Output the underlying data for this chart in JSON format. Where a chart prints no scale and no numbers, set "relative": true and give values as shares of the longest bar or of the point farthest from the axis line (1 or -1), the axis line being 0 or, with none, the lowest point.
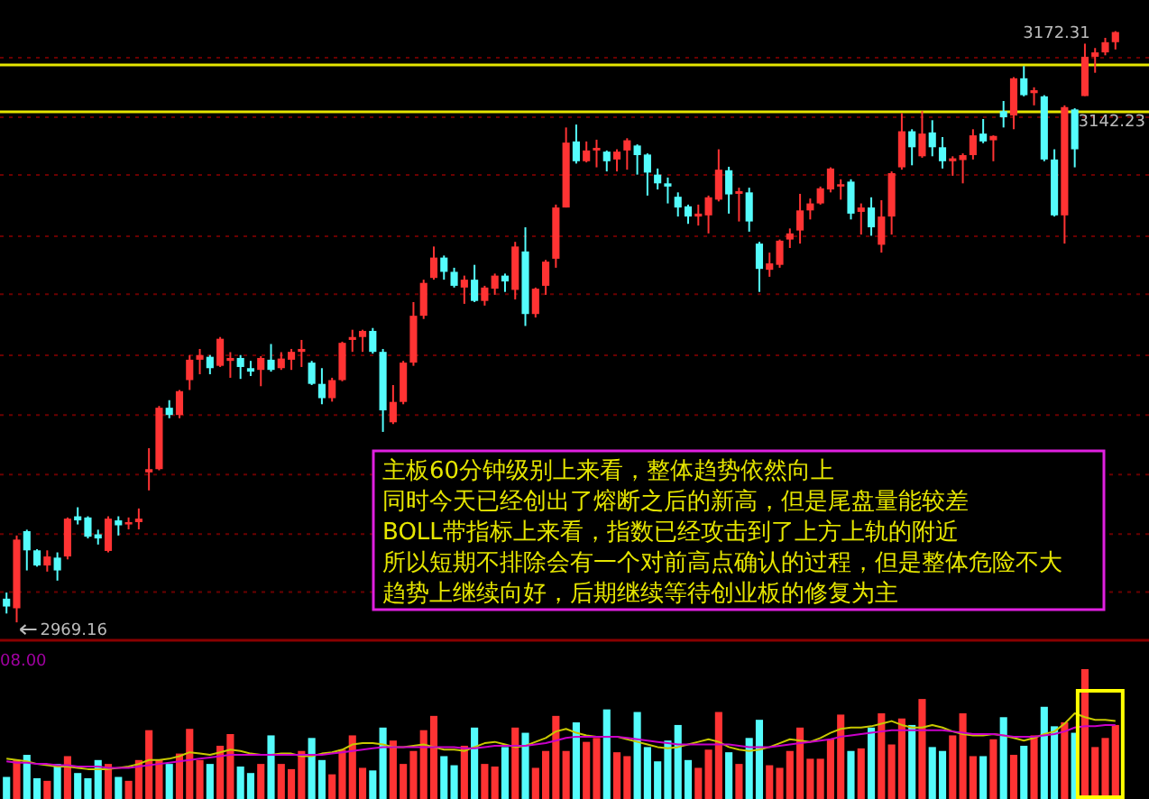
{
  "chart_data": [
    {
      "type": "candlestick",
      "grid": "y",
      "colors": [
        "#54fcfc",
        "#ff3333",
        "#54fcfc",
        "#54fcfc",
        "#ff3333",
        "#54fcfc",
        "#ff3333",
        "#54fcfc",
        "#54fcfc",
        "#54fcfc",
        "#ff3333",
        "#54fcfc",
        "#ff3333",
        "#ff3333",
        "#ff3333",
        "#ff3333",
        "#54fcfc",
        "#ff3333",
        "#ff3333",
        "#ff3333",
        "#54fcfc",
        "#ff3333",
        "#ff3333",
        "#54fcfc",
        "#54fcfc",
        "#ff3333",
        "#54fcfc",
        "#ff3333",
        "#ff3333",
        "#ff3333",
        "#54fcfc",
        "#54fcfc",
        "#ff3333",
        "#ff3333",
        "#ff3333",
        "#ff3333",
        "#54fcfc",
        "#54fcfc",
        "#ff3333",
        "#ff3333",
        "#ff3333",
        "#ff3333",
        "#ff3333",
        "#54fcfc",
        "#54fcfc",
        "#ff3333",
        "#54fcfc",
        "#ff3333",
        "#ff3333",
        "#54fcfc",
        "#ff3333",
        "#54fcfc",
        "#ff3333",
        "#ff3333",
        "#ff3333",
        "#ff3333",
        "#54fcfc",
        "#ff3333",
        "#ff3333",
        "#54fcfc",
        "#ff3333",
        "#ff3333",
        "#54fcfc",
        "#54fcfc",
        "#54fcfc",
        "#54fcfc",
        "#54fcfc",
        "#54fcfc",
        "#ff3333",
        "#ff3333",
        "#ff3333",
        "#54fcfc",
        "#ff3333",
        "#54fcfc",
        "#54fcfc",
        "#ff3333",
        "#ff3333",
        "#ff3333",
        "#ff3333",
        "#ff3333",
        "#ff3333",
        "#ff3333",
        "#ff3333",
        "#54fcfc",
        "#ff3333",
        "#54fcfc",
        "#ff3333",
        "#ff3333",
        "#ff3333",
        "#54fcfc",
        "#ff3333",
        "#54fcfc",
        "#54fcfc",
        "#ff3333",
        "#ff3333",
        "#ff3333",
        "#54fcfc",
        "#ff3333",
        "#54fcfc",
        "#ff3333",
        "#54fcfc",
        "#ff3333",
        "#54fcfc",
        "#54fcfc",
        "#ff3333",
        "#54fcfc",
        "#ff3333",
        "#ff3333",
        "#ff3333",
        "#ff3333"
      ],
      "categories": [
        null,
        null,
        null,
        null,
        null,
        null,
        null,
        null,
        null,
        null,
        null,
        null,
        null,
        null,
        null,
        null,
        null,
        null,
        null,
        null,
        null,
        null,
        null,
        null,
        null,
        null,
        null,
        null,
        null,
        null,
        null,
        null,
        null,
        null,
        null,
        null,
        null,
        null,
        null,
        null,
        null,
        null,
        null,
        null,
        null,
        null,
        null,
        null,
        null,
        null,
        null,
        null,
        null,
        null,
        null,
        null,
        null,
        null,
        null,
        null,
        null,
        null,
        null,
        null,
        null,
        null,
        null,
        null,
        null,
        null,
        null,
        null,
        null,
        null,
        null,
        null,
        null,
        null,
        null,
        null,
        null,
        null,
        null,
        null,
        null,
        null,
        null,
        null,
        null,
        null,
        null,
        null,
        null,
        null,
        null,
        null,
        null,
        null,
        null,
        null,
        null,
        null,
        null,
        null,
        null,
        null,
        null,
        null,
        null,
        null
      ],
      "ohlc": [
        [
          2977.3,
          2979.4,
          2972.2,
          2974.6
        ],
        [
          2974,
          2999,
          2969.16,
          2997.6
        ],
        [
          3000.5,
          3001,
          2987,
          2993.9
        ],
        [
          2993.9,
          2994.3,
          2988.3,
          2988.7
        ],
        [
          2988.7,
          2993.9,
          2986.6,
          2991.8
        ],
        [
          2991.4,
          2993.2,
          2983.5,
          2987
        ],
        [
          2991.8,
          3005.2,
          2990.8,
          3004.8
        ],
        [
          3005.6,
          3008.7,
          3002.8,
          3004.2
        ],
        [
          3005.2,
          3005.6,
          2998,
          2998.6
        ],
        [
          2999.4,
          3001,
          2995.9,
          2998
        ],
        [
          2993.7,
          3005.6,
          2993.2,
          3004.8
        ],
        [
          3004.2,
          3005.6,
          2999,
          3002.5
        ],
        [
          3002.8,
          3005.2,
          3001.1,
          3003.6
        ],
        [
          3003.6,
          3008.3,
          3001.1,
          3004.8
        ],
        [
          3020.7,
          3029,
          3014.5,
          3021.8
        ],
        [
          3021.8,
          3043.5,
          3021.4,
          3042.9
        ],
        [
          3042.9,
          3045.5,
          3039.3,
          3040.4
        ],
        [
          3040.4,
          3049,
          3039.3,
          3048.6
        ],
        [
          3052.4,
          3061,
          3049,
          3059.4
        ],
        [
          3059.4,
          3063.1,
          3054.4,
          3061
        ],
        [
          3060.4,
          3061,
          3054.4,
          3056.5
        ],
        [
          3057.3,
          3067.2,
          3056.9,
          3066.6
        ],
        [
          3059,
          3062,
          3053.2,
          3060
        ],
        [
          3060,
          3061,
          3052.8,
          3056.9
        ],
        [
          3056.5,
          3059,
          3053.8,
          3055.3
        ],
        [
          3055.9,
          3060.6,
          3050.3,
          3060
        ],
        [
          3059.4,
          3064.8,
          3055.3,
          3055.9
        ],
        [
          3056.5,
          3062,
          3055.9,
          3059.8
        ],
        [
          3059.4,
          3063.1,
          3055.9,
          3062.1
        ],
        [
          3062.1,
          3066.2,
          3056.9,
          3063.1
        ],
        [
          3058.4,
          3059,
          3050.7,
          3051.1
        ],
        [
          3051.1,
          3056.5,
          3044.1,
          3046.2
        ],
        [
          3046.2,
          3053.2,
          3045,
          3052.4
        ],
        [
          3052.4,
          3065.6,
          3052,
          3065.2
        ],
        [
          3066.2,
          3069.7,
          3062.1,
          3067.2
        ],
        [
          3067.2,
          3069.7,
          3062.1,
          3069.3
        ],
        [
          3069.3,
          3070.3,
          3061.5,
          3062.1
        ],
        [
          3062.1,
          3063.1,
          3034.6,
          3042
        ],
        [
          3037.9,
          3050.7,
          3037.3,
          3044.9
        ],
        [
          3044.9,
          3059,
          3044.1,
          3058.4
        ],
        [
          3058.4,
          3079.2,
          3057.3,
          3074.5
        ],
        [
          3074.5,
          3086.9,
          3073.4,
          3085.8
        ],
        [
          3087.5,
          3098.3,
          3086.9,
          3094.5
        ],
        [
          3094.5,
          3095.2,
          3086.9,
          3089.6
        ],
        [
          3089.6,
          3091,
          3084.2,
          3084.8
        ],
        [
          3084.2,
          3088.3,
          3078.6,
          3086.9
        ],
        [
          3086.9,
          3092,
          3079.2,
          3079.6
        ],
        [
          3079.6,
          3084.8,
          3078,
          3084.2
        ],
        [
          3083.8,
          3089,
          3081.7,
          3088.3
        ],
        [
          3088.3,
          3089,
          3082.7,
          3086.3
        ],
        [
          3083.4,
          3099.9,
          3080.1,
          3098.3
        ],
        [
          3096.6,
          3104.9,
          3071,
          3075.1
        ],
        [
          3075.1,
          3084.2,
          3073.9,
          3083.8
        ],
        [
          3084.8,
          3093.7,
          3081.7,
          3093.1
        ],
        [
          3094.1,
          3112.7,
          3091,
          3111.7
        ],
        [
          3111.7,
          3139.2,
          3111.7,
          3134
        ],
        [
          3134.4,
          3140.2,
          3126.8,
          3127.6
        ],
        [
          3127.6,
          3134.4,
          3127.2,
          3131.3
        ],
        [
          3131.3,
          3135,
          3125.5,
          3132.2
        ],
        [
          3130.9,
          3131.3,
          3124.1,
          3127.6
        ],
        [
          3128.2,
          3131.7,
          3124.1,
          3130.9
        ],
        [
          3131.3,
          3135.5,
          3124.7,
          3134.8
        ],
        [
          3133,
          3133.4,
          3123,
          3129.7
        ],
        [
          3129.9,
          3130.3,
          3115.8,
          3123.7
        ],
        [
          3123,
          3125.1,
          3117.9,
          3120
        ],
        [
          3120,
          3122,
          3113.1,
          3118.9
        ],
        [
          3115.4,
          3116.9,
          3108.6,
          3111.7
        ],
        [
          3112.1,
          3112.7,
          3106.1,
          3108.6
        ],
        [
          3108.6,
          3112.7,
          3105.5,
          3109.6
        ],
        [
          3109,
          3115.8,
          3102.8,
          3115.2
        ],
        [
          3114.4,
          3131.7,
          3113.8,
          3124.7
        ],
        [
          3124.5,
          3125.7,
          3109.6,
          3116.2
        ],
        [
          3116.4,
          3118.5,
          3106.9,
          3117.3
        ],
        [
          3116.9,
          3118.5,
          3103.4,
          3106.9
        ],
        [
          3099.3,
          3099.9,
          3082.7,
          3090.6
        ],
        [
          3090.3,
          3096.2,
          3087.9,
          3092.5
        ],
        [
          3092,
          3100.7,
          3091,
          3100.3
        ],
        [
          3100.7,
          3104.5,
          3097.8,
          3102.8
        ],
        [
          3103.8,
          3116.4,
          3099.3,
          3110.7
        ],
        [
          3110.7,
          3114.8,
          3107.6,
          3113.1
        ],
        [
          3113.1,
          3118.9,
          3112.7,
          3118.3
        ],
        [
          3117.9,
          3125.5,
          3116.9,
          3125.1
        ],
        [
          3118.9,
          3121.4,
          3114.4,
          3119.7
        ],
        [
          3120.6,
          3121.4,
          3107.6,
          3109.6
        ],
        [
          3110.2,
          3113.1,
          3102.4,
          3111.7
        ],
        [
          3111.7,
          3115.2,
          3102,
          3104.9
        ],
        [
          3098.9,
          3114.2,
          3096.2,
          3108.6
        ],
        [
          3108.6,
          3124.1,
          3102.4,
          3123.5
        ],
        [
          3125.5,
          3144.1,
          3124.7,
          3137.9
        ],
        [
          3137.9,
          3138.6,
          3126.2,
          3132.4
        ],
        [
          3129.3,
          3144.8,
          3128.8,
          3137.1
        ],
        [
          3137.5,
          3141.7,
          3129.3,
          3132.4
        ],
        [
          3132.4,
          3135.9,
          3125.1,
          3127.6
        ],
        [
          3127.6,
          3129.3,
          3122.6,
          3128.6
        ],
        [
          3128,
          3130.3,
          3120,
          3129.7
        ],
        [
          3129.7,
          3138.6,
          3128.2,
          3136.5
        ],
        [
          3137.1,
          3142.1,
          3133.8,
          3134.4
        ],
        [
          3134.8,
          3136.5,
          3127.6,
          3136.3
        ],
        [
          3144.8,
          3148.3,
          3139.2,
          3142.7
        ],
        [
          3143.3,
          3156.5,
          3138.6,
          3156.1
        ],
        [
          3156.1,
          3160.3,
          3149.9,
          3150.3
        ],
        [
          3151,
          3153,
          3146.8,
          3152
        ],
        [
          3149.9,
          3150.3,
          3127.6,
          3128.2
        ],
        [
          3128.2,
          3131.7,
          3108.6,
          3109
        ],
        [
          3109,
          3146.8,
          3099.3,
          3146.2
        ],
        [
          3145.4,
          3145.8,
          3125.5,
          3131.7
        ],
        [
          3150,
          3168,
          3150,
          3163.5
        ],
        [
          3163.5,
          3166.5,
          3158,
          3165
        ],
        [
          3165,
          3170,
          3164,
          3168.5
        ],
        [
          3168.5,
          3172.31,
          3166,
          3172
        ]
      ],
      "ylim": [
        2963,
        3183
      ],
      "yticks": [
        {
          "value": 2979.6,
          "label": null
        },
        {
          "value": 2999.5,
          "label": null
        },
        {
          "value": 3019.9,
          "label": null
        },
        {
          "value": 3040.4,
          "label": null
        },
        {
          "value": 3060.9,
          "label": null
        },
        {
          "value": 3081.9,
          "label": null
        },
        {
          "value": 3101.8,
          "label": null
        },
        {
          "value": 3122.9,
          "label": null
        },
        {
          "value": 3142.7,
          "label": null
        },
        {
          "value": 3163.2,
          "label": null
        }
      ],
      "ref_lines": [
        {
          "axis": "y",
          "value": 3160.7,
          "color": "#e6e600"
        },
        {
          "axis": "y",
          "value": 3144.6,
          "color": "#e6e600"
        }
      ],
      "annotations": [
        "3172.31",
        "3142.23",
        "2969.16",
        "主板60分钟级别上来看，整体趋势依然向上",
        "同时今天已经创出了熔断之后的新高，但是尾盘量能较差",
        "BOLL带指标上来看，指数已经攻击到了上方上轨的附近",
        "所以短期不排除会有一个对前高点确认的过程，但是整体危险不大",
        "趋势上继续向好，后期继续等待创业板的修复为主"
      ]
    },
    {
      "type": "bar",
      "relative": true,
      "categories": [
        null,
        null,
        null,
        null,
        null,
        null,
        null,
        null,
        null,
        null,
        null,
        null,
        null,
        null,
        null,
        null,
        null,
        null,
        null,
        null,
        null,
        null,
        null,
        null,
        null,
        null,
        null,
        null,
        null,
        null,
        null,
        null,
        null,
        null,
        null,
        null,
        null,
        null,
        null,
        null,
        null,
        null,
        null,
        null,
        null,
        null,
        null,
        null,
        null,
        null,
        null,
        null,
        null,
        null,
        null,
        null,
        null,
        null,
        null,
        null,
        null,
        null,
        null,
        null,
        null,
        null,
        null,
        null,
        null,
        null,
        null,
        null,
        null,
        null,
        null,
        null,
        null,
        null,
        null,
        null,
        null,
        null,
        null,
        null,
        null,
        null,
        null,
        null,
        null,
        null,
        null,
        null,
        null,
        null,
        null,
        null,
        null,
        null,
        null,
        null,
        null,
        null,
        null,
        null,
        null,
        null,
        null,
        null,
        null,
        null
      ],
      "series": [
        {
          "type": "bar",
          "values": [
            0.17,
            0.3,
            0.34,
            0.16,
            0.14,
            0.27,
            0.33,
            0.2,
            0.16,
            0.3,
            0.27,
            0.17,
            0.14,
            0.3,
            0.53,
            0.3,
            0.27,
            0.35,
            0.54,
            0.3,
            0.27,
            0.41,
            0.5,
            0.25,
            0.2,
            0.27,
            0.49,
            0.27,
            0.23,
            0.37,
            0.47,
            0.3,
            0.19,
            0.38,
            0.49,
            0.24,
            0.22,
            0.55,
            0.45,
            0.27,
            0.37,
            0.53,
            0.64,
            0.33,
            0.26,
            0.41,
            0.55,
            0.27,
            0.25,
            0.4,
            0.55,
            0.51,
            0.24,
            0.37,
            0.64,
            0.37,
            0.59,
            0.44,
            0.47,
            0.69,
            0.36,
            0.33,
            0.67,
            0.4,
            0.29,
            0.45,
            0.57,
            0.3,
            0.24,
            0.38,
            0.67,
            0.36,
            0.27,
            0.47,
            0.61,
            0.26,
            0.24,
            0.37,
            0.55,
            0.31,
            0.31,
            0.46,
            0.65,
            0.37,
            0.39,
            0.55,
            0.66,
            0.42,
            0.62,
            0.57,
            0.77,
            0.4,
            0.37,
            0.49,
            0.66,
            0.33,
            0.33,
            0.46,
            0.63,
            0.34,
            0.41,
            0.49,
            0.71,
            0.56,
            0.59,
            0.51,
            1,
            0.4,
            0.47,
            0.57
          ],
          "colors": [
            "#54fcfc",
            "#ff3333",
            "#54fcfc",
            "#54fcfc",
            "#ff3333",
            "#54fcfc",
            "#ff3333",
            "#54fcfc",
            "#54fcfc",
            "#54fcfc",
            "#ff3333",
            "#54fcfc",
            "#ff3333",
            "#ff3333",
            "#ff3333",
            "#ff3333",
            "#54fcfc",
            "#ff3333",
            "#ff3333",
            "#ff3333",
            "#54fcfc",
            "#ff3333",
            "#ff3333",
            "#54fcfc",
            "#54fcfc",
            "#ff3333",
            "#54fcfc",
            "#ff3333",
            "#ff3333",
            "#ff3333",
            "#54fcfc",
            "#54fcfc",
            "#ff3333",
            "#ff3333",
            "#ff3333",
            "#ff3333",
            "#54fcfc",
            "#54fcfc",
            "#ff3333",
            "#ff3333",
            "#ff3333",
            "#ff3333",
            "#ff3333",
            "#54fcfc",
            "#54fcfc",
            "#ff3333",
            "#54fcfc",
            "#ff3333",
            "#ff3333",
            "#54fcfc",
            "#ff3333",
            "#54fcfc",
            "#ff3333",
            "#ff3333",
            "#ff3333",
            "#ff3333",
            "#54fcfc",
            "#ff3333",
            "#ff3333",
            "#54fcfc",
            "#ff3333",
            "#ff3333",
            "#54fcfc",
            "#54fcfc",
            "#54fcfc",
            "#54fcfc",
            "#54fcfc",
            "#54fcfc",
            "#ff3333",
            "#ff3333",
            "#ff3333",
            "#54fcfc",
            "#ff3333",
            "#54fcfc",
            "#54fcfc",
            "#ff3333",
            "#ff3333",
            "#ff3333",
            "#ff3333",
            "#ff3333",
            "#ff3333",
            "#ff3333",
            "#ff3333",
            "#54fcfc",
            "#ff3333",
            "#54fcfc",
            "#ff3333",
            "#ff3333",
            "#ff3333",
            "#54fcfc",
            "#ff3333",
            "#54fcfc",
            "#54fcfc",
            "#ff3333",
            "#ff3333",
            "#ff3333",
            "#54fcfc",
            "#ff3333",
            "#54fcfc",
            "#ff3333",
            "#54fcfc",
            "#ff3333",
            "#54fcfc",
            "#54fcfc",
            "#ff3333",
            "#54fcfc",
            "#ff3333",
            "#ff3333",
            "#ff3333",
            "#ff3333"
          ]
        },
        {
          "type": "line",
          "color": "#c8c800",
          "values": [
            0.31,
            0.3,
            0.29,
            0.27,
            0.26,
            0.25,
            0.25,
            0.24,
            0.23,
            0.23,
            0.23,
            0.24,
            0.25,
            0.27,
            0.3,
            0.3,
            0.31,
            0.33,
            0.36,
            0.35,
            0.34,
            0.36,
            0.38,
            0.37,
            0.35,
            0.34,
            0.34,
            0.35,
            0.35,
            0.33,
            0.33,
            0.35,
            0.36,
            0.38,
            0.42,
            0.43,
            0.43,
            0.42,
            0.4,
            0.4,
            0.41,
            0.42,
            0.4,
            0.38,
            0.38,
            0.37,
            0.4,
            0.43,
            0.44,
            0.42,
            0.4,
            0.41,
            0.44,
            0.47,
            0.52,
            0.54,
            0.51,
            0.49,
            0.48,
            0.48,
            0.48,
            0.46,
            0.44,
            0.42,
            0.4,
            0.39,
            0.4,
            0.42,
            0.44,
            0.46,
            0.44,
            0.4,
            0.38,
            0.37,
            0.38,
            0.4,
            0.43,
            0.46,
            0.45,
            0.44,
            0.47,
            0.51,
            0.54,
            0.55,
            0.55,
            0.56,
            0.58,
            0.6,
            0.57,
            0.55,
            0.55,
            0.57,
            0.55,
            0.52,
            0.5,
            0.49,
            0.49,
            0.5,
            0.49,
            0.47,
            0.45,
            0.47,
            0.5,
            0.52,
            0.58,
            0.66,
            0.63,
            0.61,
            0.61,
            0.6
          ]
        },
        {
          "type": "line",
          "color": "#c800c8",
          "values": [
            0.29,
            0.28,
            0.28,
            0.27,
            0.27,
            0.26,
            0.26,
            0.25,
            0.25,
            0.25,
            0.24,
            0.24,
            0.24,
            0.25,
            0.26,
            0.27,
            0.28,
            0.29,
            0.3,
            0.31,
            0.32,
            0.33,
            0.34,
            0.34,
            0.34,
            0.34,
            0.34,
            0.34,
            0.34,
            0.34,
            0.34,
            0.34,
            0.35,
            0.36,
            0.37,
            0.38,
            0.39,
            0.4,
            0.4,
            0.4,
            0.4,
            0.4,
            0.4,
            0.4,
            0.4,
            0.39,
            0.39,
            0.4,
            0.41,
            0.41,
            0.41,
            0.41,
            0.42,
            0.43,
            0.45,
            0.47,
            0.48,
            0.48,
            0.48,
            0.48,
            0.48,
            0.47,
            0.46,
            0.45,
            0.44,
            0.43,
            0.42,
            0.42,
            0.42,
            0.42,
            0.42,
            0.42,
            0.41,
            0.4,
            0.4,
            0.4,
            0.41,
            0.42,
            0.43,
            0.44,
            0.45,
            0.46,
            0.48,
            0.49,
            0.5,
            0.51,
            0.52,
            0.53,
            0.53,
            0.53,
            0.53,
            0.53,
            0.53,
            0.52,
            0.51,
            0.5,
            0.5,
            0.5,
            0.49,
            0.48,
            0.48,
            0.48,
            0.49,
            0.5,
            0.52,
            0.55,
            0.56,
            0.56,
            0.57,
            0.57
          ]
        }
      ],
      "annotations": [
        "08.00"
      ]
    }
  ]
}
